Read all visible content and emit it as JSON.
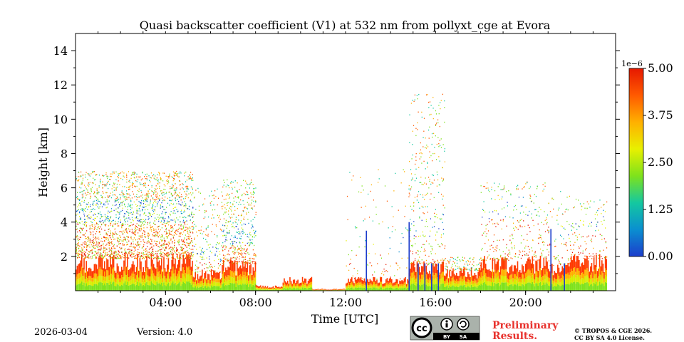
{
  "chart_data": {
    "type": "heatmap",
    "title": "Quasi backscatter coefficient (V1) at 532 nm from pollyxt_cge at Evora",
    "xlabel": "Time [UTC]",
    "ylabel": "Height [km]",
    "xlim_hours": [
      0,
      24
    ],
    "ylim_km": [
      0,
      15
    ],
    "x_ticks": [
      {
        "label": "04:00",
        "hour": 4
      },
      {
        "label": "08:00",
        "hour": 8
      },
      {
        "label": "12:00",
        "hour": 12
      },
      {
        "label": "16:00",
        "hour": 16
      },
      {
        "label": "20:00",
        "hour": 20
      }
    ],
    "y_ticks": [
      {
        "label": "2",
        "value": 2
      },
      {
        "label": "4",
        "value": 4
      },
      {
        "label": "6",
        "value": 6
      },
      {
        "label": "8",
        "value": 8
      },
      {
        "label": "10",
        "value": 10
      },
      {
        "label": "12",
        "value": 12
      },
      {
        "label": "14",
        "value": 14
      }
    ],
    "colorbar": {
      "min": 0.0,
      "max": 5.0,
      "exponent_label": "1e−6",
      "ticks": [
        {
          "label": "0.00",
          "value": 0.0
        },
        {
          "label": "1.25",
          "value": 1.25
        },
        {
          "label": "2.50",
          "value": 2.5
        },
        {
          "label": "3.75",
          "value": 3.75
        },
        {
          "label": "5.00",
          "value": 5.0
        }
      ],
      "colors": [
        "#1c3dcc",
        "#0a8fd0",
        "#14c8a0",
        "#7ee21c",
        "#e8f000",
        "#ffb000",
        "#ff5a00",
        "#e61800"
      ]
    },
    "segments": [
      {
        "start": 0.0,
        "end": 5.2,
        "surface_top": 1.9,
        "layer_top": 5.3,
        "aerosol_top": 7.0,
        "density": 0.8
      },
      {
        "start": 5.2,
        "end": 6.5,
        "surface_top": 1.1,
        "layer_top": 3.0,
        "aerosol_top": 6.0,
        "density": 0.25
      },
      {
        "start": 6.5,
        "end": 8.0,
        "surface_top": 1.6,
        "layer_top": 4.0,
        "aerosol_top": 6.5,
        "density": 0.5
      },
      {
        "start": 8.0,
        "end": 9.2,
        "surface_top": 0.3,
        "layer_top": 0.0,
        "aerosol_top": 0.0,
        "density": 0.0
      },
      {
        "start": 9.2,
        "end": 10.5,
        "surface_top": 0.7,
        "layer_top": 0.0,
        "aerosol_top": 0.0,
        "density": 0.0
      },
      {
        "start": 10.5,
        "end": 12.0,
        "surface_top": 0.1,
        "layer_top": 0.0,
        "aerosol_top": 0.0,
        "density": 0.0
      },
      {
        "start": 12.0,
        "end": 14.8,
        "surface_top": 0.7,
        "layer_top": 3.5,
        "aerosol_top": 7.2,
        "density": 0.06
      },
      {
        "start": 14.8,
        "end": 16.4,
        "surface_top": 1.5,
        "layer_top": 4.5,
        "aerosol_top": 11.5,
        "density": 0.35
      },
      {
        "start": 16.4,
        "end": 18.0,
        "surface_top": 1.2,
        "layer_top": 0.0,
        "aerosol_top": 2.0,
        "density": 0.1
      },
      {
        "start": 18.0,
        "end": 21.0,
        "surface_top": 1.8,
        "layer_top": 5.5,
        "aerosol_top": 6.4,
        "density": 0.18
      },
      {
        "start": 21.0,
        "end": 22.0,
        "surface_top": 1.5,
        "layer_top": 4.2,
        "aerosol_top": 6.0,
        "density": 0.15
      },
      {
        "start": 22.0,
        "end": 23.6,
        "surface_top": 1.9,
        "layer_top": 4.8,
        "aerosol_top": 5.5,
        "density": 0.15
      }
    ]
  },
  "footer": {
    "date": "2026-03-04",
    "version": "Version: 4.0",
    "preliminary_line1": "Preliminary",
    "preliminary_line2": "Results.",
    "copyright_line1": "© TROPOS & CGE 2026.",
    "copyright_line2": "CC BY SA 4.0 License.",
    "license_badge_by": "BY",
    "license_badge_sa": "SA",
    "license_badge_cc": "cc"
  }
}
